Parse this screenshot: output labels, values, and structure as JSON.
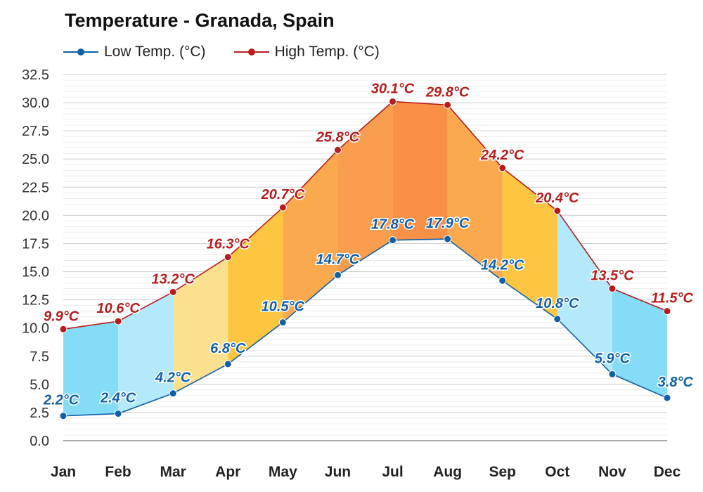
{
  "title": "Temperature - Granada, Spain",
  "chart_data": {
    "type": "line",
    "title": "Temperature - Granada, Spain",
    "categories": [
      "Jan",
      "Feb",
      "Mar",
      "Apr",
      "May",
      "Jun",
      "Jul",
      "Aug",
      "Sep",
      "Oct",
      "Nov",
      "Dec"
    ],
    "series": [
      {
        "name": "Low Temp. (°C)",
        "color": "#1060a8",
        "values": [
          2.2,
          2.4,
          4.2,
          6.8,
          10.5,
          14.7,
          17.8,
          17.9,
          14.2,
          10.8,
          5.9,
          3.8
        ]
      },
      {
        "name": "High Temp. (°C)",
        "color": "#b81c1c",
        "values": [
          9.9,
          10.6,
          13.2,
          16.3,
          20.7,
          25.8,
          30.1,
          29.8,
          24.2,
          20.4,
          13.5,
          11.5
        ]
      }
    ],
    "value_suffix": "°C",
    "ylim": [
      0,
      32.5
    ],
    "yticks": [
      "0.0",
      "2.5",
      "5.0",
      "7.5",
      "10.0",
      "12.5",
      "15.0",
      "17.5",
      "20.0",
      "22.5",
      "25.0",
      "27.5",
      "30.0",
      "32.5"
    ],
    "grid": true,
    "legend": "top-left",
    "band_colors": [
      "#84dcf6",
      "#b3e9fa",
      "#fbe08e",
      "#fcc640",
      "#fba94f",
      "#f99d4f",
      "#f99047",
      "#fba94f",
      "#fcc640",
      "#b3e9fa",
      "#84dcf6"
    ]
  }
}
